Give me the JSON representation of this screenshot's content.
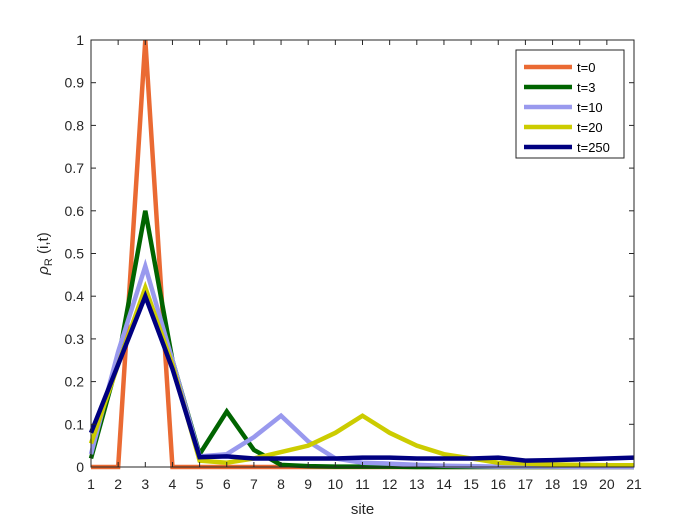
{
  "chart_data": {
    "type": "line",
    "xlabel": "site",
    "ylabel": "ρR (i,t)",
    "ylabel_main": "ρ",
    "ylabel_sub": "R",
    "ylabel_rest": " (i,t)",
    "xlim": [
      1,
      21
    ],
    "ylim": [
      0,
      1
    ],
    "x": [
      1,
      2,
      3,
      4,
      5,
      6,
      7,
      8,
      9,
      10,
      11,
      12,
      13,
      14,
      15,
      16,
      17,
      18,
      19,
      20,
      21
    ],
    "x_ticks": [
      "1",
      "2",
      "3",
      "4",
      "5",
      "6",
      "7",
      "8",
      "9",
      "10",
      "11",
      "12",
      "13",
      "14",
      "15",
      "16",
      "17",
      "18",
      "19",
      "20",
      "21"
    ],
    "y_ticks": [
      {
        "value": 0,
        "label": "0"
      },
      {
        "value": 0.1,
        "label": "0.1"
      },
      {
        "value": 0.2,
        "label": "0.2"
      },
      {
        "value": 0.3,
        "label": "0.3"
      },
      {
        "value": 0.4,
        "label": "0.4"
      },
      {
        "value": 0.5,
        "label": "0.5"
      },
      {
        "value": 0.6,
        "label": "0.6"
      },
      {
        "value": 0.7,
        "label": "0.7"
      },
      {
        "value": 0.8,
        "label": "0.8"
      },
      {
        "value": 0.9,
        "label": "0.9"
      },
      {
        "value": 1,
        "label": "1"
      }
    ],
    "grid": false,
    "legend_position": "top-right",
    "series": [
      {
        "name": "t=0",
        "color": "#EA6A33",
        "values": [
          0,
          0,
          1,
          0,
          0,
          0,
          0,
          0,
          0,
          0,
          0,
          0,
          0,
          0,
          0,
          0,
          0,
          0,
          0,
          0,
          0
        ]
      },
      {
        "name": "t=3",
        "color": "#006400",
        "values": [
          0.02,
          0.25,
          0.6,
          0.25,
          0.03,
          0.13,
          0.04,
          0.005,
          0.002,
          0.001,
          0.001,
          0.001,
          0,
          0,
          0,
          0,
          0,
          0,
          0,
          0,
          0
        ]
      },
      {
        "name": "t=10",
        "color": "#9999EE",
        "values": [
          0.03,
          0.27,
          0.47,
          0.25,
          0.025,
          0.03,
          0.07,
          0.12,
          0.06,
          0.02,
          0.01,
          0.008,
          0.005,
          0.003,
          0.002,
          0.001,
          0.001,
          0.001,
          0,
          0,
          0
        ]
      },
      {
        "name": "t=20",
        "color": "#CCCC00",
        "values": [
          0.055,
          0.24,
          0.42,
          0.24,
          0.015,
          0.01,
          0.02,
          0.035,
          0.05,
          0.08,
          0.12,
          0.08,
          0.05,
          0.03,
          0.02,
          0.01,
          0.008,
          0.006,
          0.005,
          0.004,
          0.004
        ]
      },
      {
        "name": "t=250",
        "color": "#000080",
        "values": [
          0.08,
          0.24,
          0.4,
          0.23,
          0.023,
          0.025,
          0.02,
          0.02,
          0.02,
          0.02,
          0.022,
          0.022,
          0.02,
          0.02,
          0.02,
          0.022,
          0.015,
          0.016,
          0.018,
          0.02,
          0.022
        ]
      }
    ]
  }
}
